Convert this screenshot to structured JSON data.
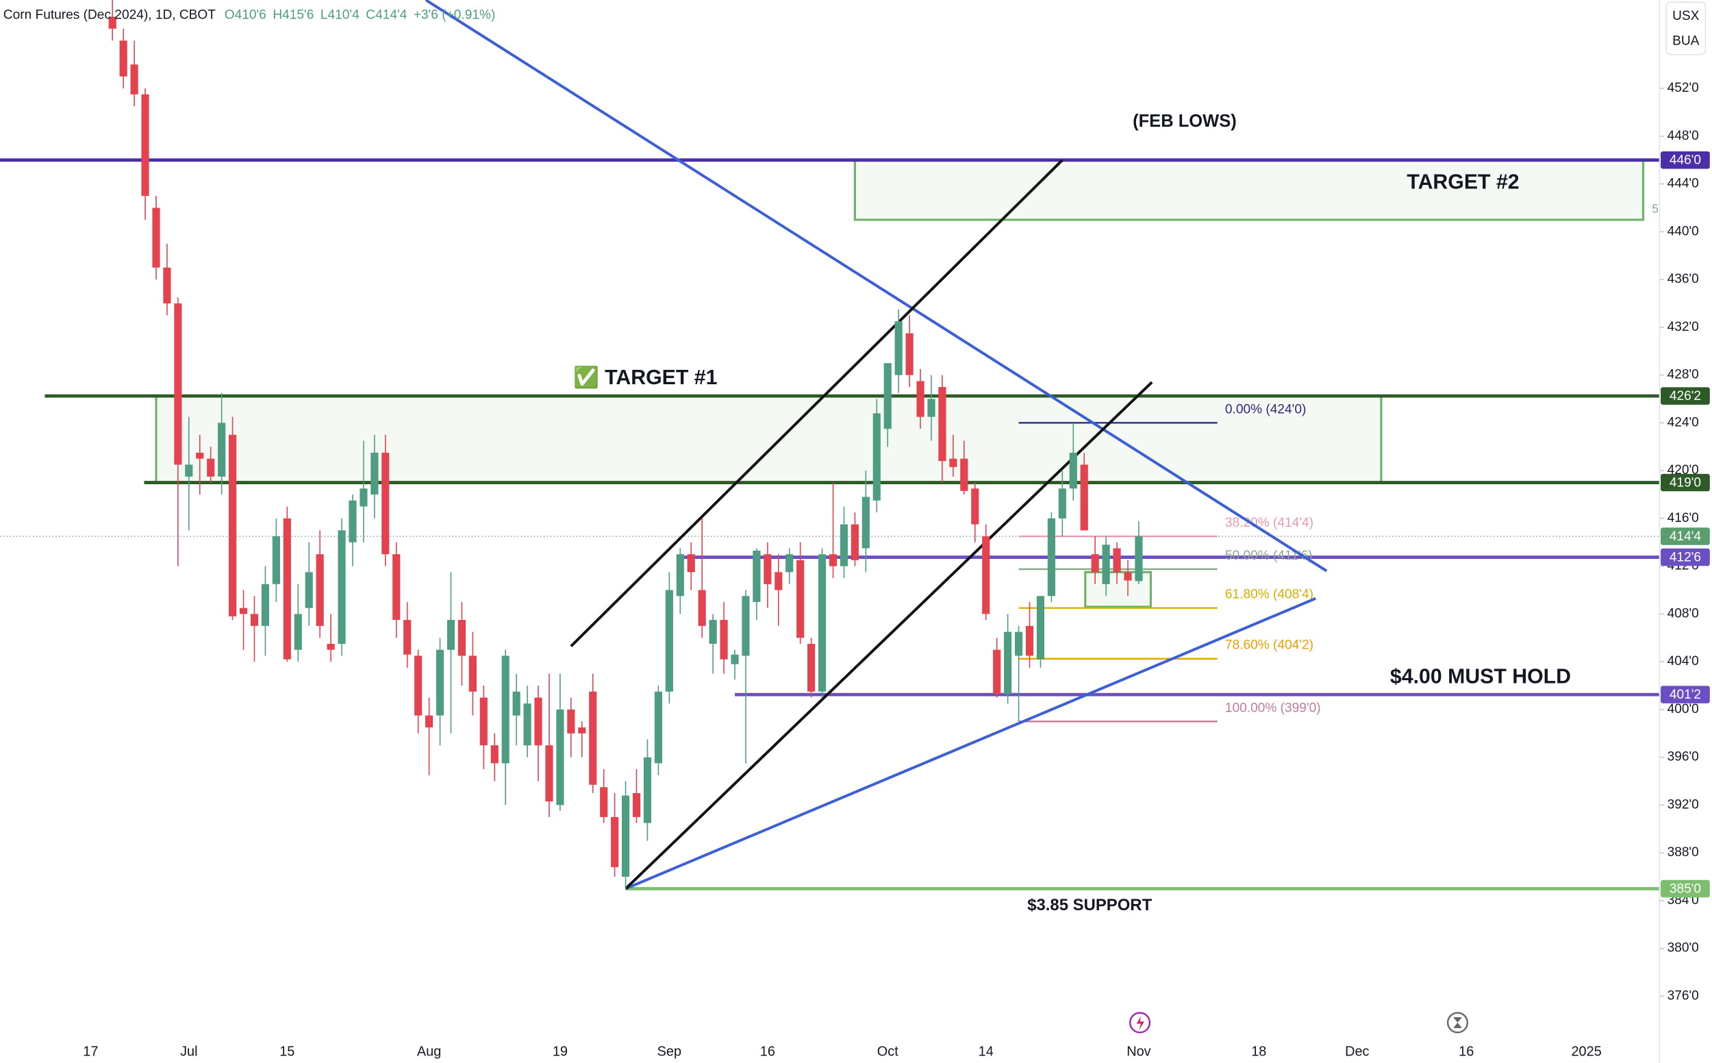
{
  "chart_data": {
    "type": "candlestick",
    "title": "Corn Futures (Dec 2024), 1D, CBOT",
    "header_values": [
      "O410'6",
      "H415'6",
      "L410'4",
      "C414'4",
      "+3'6 (+0.91%)"
    ],
    "axis_units": [
      "USX",
      "BUA"
    ],
    "up_color": "#4e9d82",
    "down_color": "#e2434f",
    "x": [
      2,
      3,
      4,
      5,
      6,
      7,
      8,
      9,
      10,
      11,
      12,
      13,
      14,
      15,
      16,
      17,
      18,
      19,
      20,
      21,
      22,
      23,
      24,
      25,
      26,
      27,
      28,
      29,
      30,
      31,
      32,
      33,
      34,
      35,
      36,
      37,
      38,
      39,
      40,
      41,
      42,
      43,
      44,
      45,
      46,
      47,
      48,
      49,
      50,
      51,
      52,
      53,
      54,
      55,
      56,
      57,
      58,
      59,
      60,
      61,
      62,
      63,
      64,
      65,
      66,
      67,
      68,
      69,
      70,
      71,
      72,
      73,
      74,
      75,
      76,
      77,
      78,
      79,
      80,
      81,
      82,
      83,
      84,
      85,
      86,
      87,
      88,
      89,
      90,
      91,
      92,
      93,
      94,
      95,
      96
    ],
    "open": [
      458,
      456,
      454,
      451.5,
      442,
      437,
      434,
      419.5,
      421.5,
      421,
      419.5,
      423,
      408.5,
      408,
      407,
      410.5,
      416,
      405,
      408.5,
      413,
      405.5,
      405.5,
      414,
      417,
      418,
      421.5,
      413,
      407.5,
      404.5,
      399.5,
      399.5,
      405,
      407.5,
      404.5,
      401,
      397,
      395.5,
      399.5,
      397,
      401,
      397,
      392,
      400,
      398.5,
      401.5,
      393.5,
      391,
      386,
      393,
      390.5,
      395.5,
      401.5,
      409.5,
      413,
      410,
      405.5,
      407.5,
      403.8,
      404.5,
      409,
      413,
      411.5,
      411.5,
      412.5,
      405.5,
      401.5,
      413,
      412,
      415.5,
      413.5,
      417.5,
      423.5,
      428,
      431.5,
      427.5,
      424.5,
      427,
      421,
      421,
      418.5,
      414.5,
      405,
      401.3,
      404.5,
      407,
      404.2,
      409.5,
      416,
      418.5,
      420.5,
      413,
      410.5,
      413.5,
      411.5,
      410.75
    ],
    "high": [
      460,
      457,
      456,
      452,
      443,
      439,
      434.5,
      424.5,
      423,
      422,
      426.5,
      424.5,
      410,
      409.5,
      412,
      416,
      417,
      410.5,
      414,
      415,
      408,
      416,
      418,
      422.5,
      423,
      423,
      414,
      409,
      405,
      401,
      406,
      411.5,
      409,
      406.5,
      402,
      398,
      405,
      403,
      402,
      402,
      403,
      403,
      401,
      399,
      403,
      395,
      393,
      394,
      395,
      397.5,
      402,
      411.5,
      413.5,
      414,
      416,
      408,
      409,
      405,
      410,
      413.5,
      414,
      413,
      413.5,
      414,
      406,
      413.5,
      419,
      417,
      416.5,
      420,
      426,
      429,
      433.5,
      433,
      428.5,
      428,
      428,
      423,
      422.5,
      419,
      415.5,
      406,
      408,
      407,
      409,
      409.5,
      416.5,
      420,
      424,
      421.5,
      414.5,
      414.5,
      414,
      412.5,
      415.75
    ],
    "low": [
      456,
      452,
      450.5,
      441,
      436,
      433,
      412,
      415,
      418,
      419,
      418,
      407.5,
      405,
      404,
      404.5,
      409,
      404,
      404,
      407,
      406,
      404,
      404.5,
      412,
      414,
      416,
      412,
      406,
      403.5,
      398,
      394.5,
      397,
      398,
      402,
      399.5,
      395,
      394,
      392,
      397,
      396,
      394,
      391,
      391.5,
      396,
      396,
      393,
      390.5,
      386,
      385,
      390.5,
      389,
      394.5,
      400.5,
      408,
      410,
      406,
      403,
      403,
      402.5,
      395.5,
      407.5,
      408.5,
      407,
      410.5,
      405.5,
      401,
      401,
      411,
      411,
      412,
      411.5,
      416.5,
      422,
      426.5,
      427,
      423.5,
      422.5,
      419,
      419.5,
      418,
      414,
      407.5,
      401,
      400.5,
      399,
      403.5,
      403.5,
      409,
      414.5,
      417.5,
      415,
      410.5,
      409.5,
      410.5,
      409.5,
      410.5
    ],
    "close": [
      457,
      453,
      451.5,
      443,
      437,
      434,
      420.5,
      420.5,
      421,
      419.5,
      424,
      407.8,
      408,
      407,
      410.5,
      414.5,
      404.2,
      408,
      411.5,
      407,
      405,
      415,
      417.5,
      418.5,
      421.5,
      413,
      407.5,
      404.6,
      399.5,
      398.5,
      405,
      407.5,
      404.5,
      401.5,
      397,
      395.5,
      404.5,
      401.5,
      400.5,
      397,
      392.3,
      400,
      398,
      398,
      393.7,
      391,
      386.8,
      392.8,
      391,
      396,
      401.5,
      410,
      413,
      411.5,
      407,
      407.5,
      404.2,
      404.6,
      409.5,
      413.3,
      410.5,
      410,
      413,
      406,
      401.5,
      413,
      412,
      415.5,
      412.5,
      417.8,
      424.8,
      429,
      432.5,
      428,
      424.5,
      426,
      420.8,
      420.3,
      418.3,
      415.5,
      408,
      401.3,
      406.5,
      406.5,
      404.5,
      409.5,
      416,
      418.5,
      421.5,
      415,
      411.5,
      413.8,
      411.5,
      410.8,
      414.5
    ],
    "xlim": [
      -8.3,
      143.7
    ],
    "xticks": [
      {
        "value": 0,
        "label": "17"
      },
      {
        "value": 9,
        "label": "Jul"
      },
      {
        "value": 18,
        "label": "15"
      },
      {
        "value": 31,
        "label": "Aug"
      },
      {
        "value": 43,
        "label": "19"
      },
      {
        "value": 53,
        "label": "Sep"
      },
      {
        "value": 62,
        "label": "16"
      },
      {
        "value": 73,
        "label": "Oct"
      },
      {
        "value": 82,
        "label": "14"
      },
      {
        "value": 96,
        "label": "Nov"
      },
      {
        "value": 107,
        "label": "18"
      },
      {
        "value": 116,
        "label": "Dec"
      },
      {
        "value": 126,
        "label": "16"
      },
      {
        "value": 137,
        "label": "2025"
      }
    ],
    "ylim": [
      372.6,
      459.4
    ],
    "yticks": [
      {
        "value": 376,
        "label": "376'0"
      },
      {
        "value": 380,
        "label": "380'0"
      },
      {
        "value": 384,
        "label": "384'0"
      },
      {
        "value": 388,
        "label": "388'0"
      },
      {
        "value": 392,
        "label": "392'0"
      },
      {
        "value": 396,
        "label": "396'0"
      },
      {
        "value": 400,
        "label": "400'0"
      },
      {
        "value": 404,
        "label": "404'0"
      },
      {
        "value": 408,
        "label": "408'0"
      },
      {
        "value": 412,
        "label": "412'0"
      },
      {
        "value": 416,
        "label": "416'0"
      },
      {
        "value": 420,
        "label": "420'0"
      },
      {
        "value": 424,
        "label": "424'0"
      },
      {
        "value": 428,
        "label": "428'0"
      },
      {
        "value": 432,
        "label": "432'0"
      },
      {
        "value": 436,
        "label": "436'0"
      },
      {
        "value": 440,
        "label": "440'0"
      },
      {
        "value": 444,
        "label": "444'0"
      },
      {
        "value": 448,
        "label": "448'0"
      },
      {
        "value": 452,
        "label": "452'0"
      }
    ],
    "grid": false,
    "levels": [
      {
        "value": 446,
        "label": "446'0",
        "color": "#4a2fa8",
        "x_start": -8.3
      },
      {
        "value": 426.25,
        "label": "426'2",
        "color": "#2d5a27",
        "x_start": -4.2
      },
      {
        "value": 419,
        "label": "419'0",
        "color": "#2d5a27",
        "x_start": 4.9
      },
      {
        "value": 414.5,
        "label": "414'4",
        "color": "#5a9e6e",
        "x_start": -8.3,
        "dotted": true
      },
      {
        "value": 412.75,
        "label": "412'6",
        "color": "#6a4fc4",
        "x_start": 54
      },
      {
        "value": 401.25,
        "label": "401'2",
        "color": "#6a4fc4",
        "x_start": 59
      },
      {
        "value": 385,
        "label": "385'0",
        "color": "#7dbf6f",
        "x_start": 49
      }
    ],
    "zones": [
      {
        "x": [
          70,
          142.2
        ],
        "y": [
          446,
          441
        ]
      },
      {
        "x": [
          6,
          118.2
        ],
        "y": [
          426.25,
          419
        ]
      },
      {
        "x": [
          91.1,
          97.1
        ],
        "y": [
          411.5,
          408.6
        ]
      }
    ],
    "zone_color": "#6db46a",
    "zone_extra_label": "5",
    "trendlines": [
      {
        "color": "#3c5fd6",
        "x": [
          30.7,
          113.2
        ],
        "y": [
          459.4,
          411.6
        ]
      },
      {
        "color": "#3c5fd6",
        "x": [
          49,
          112.2
        ],
        "y": [
          385,
          409.3
        ]
      },
      {
        "color": "#111111",
        "x": [
          44,
          89
        ],
        "y": [
          405.3,
          446
        ]
      },
      {
        "color": "#111111",
        "x": [
          49,
          97.2
        ],
        "y": [
          385,
          427.4
        ]
      }
    ],
    "fib": {
      "x": [
        85,
        103.2
      ],
      "levels": [
        {
          "value": 424,
          "label": "0.00% (424'0)",
          "color": "#2a2a80"
        },
        {
          "value": 414.5,
          "label": "38.20% (414'4)",
          "color": "#e79ab0"
        },
        {
          "value": 411.75,
          "label": "50.00% (411'6)",
          "color": "#8aaa8a"
        },
        {
          "value": 408.5,
          "label": "61.80% (408'4)",
          "color": "#d4b000"
        },
        {
          "value": 404.25,
          "label": "78.60% (404'2)",
          "color": "#e8a000"
        },
        {
          "value": 399,
          "label": "100.00% (399'0)",
          "color": "#c47a9a"
        }
      ]
    },
    "annotations": [
      "(FEB LOWS)",
      "TARGET #2",
      "✅ TARGET #1",
      "$4.00 MUST HOLD",
      "$3.85 SUPPORT"
    ]
  }
}
